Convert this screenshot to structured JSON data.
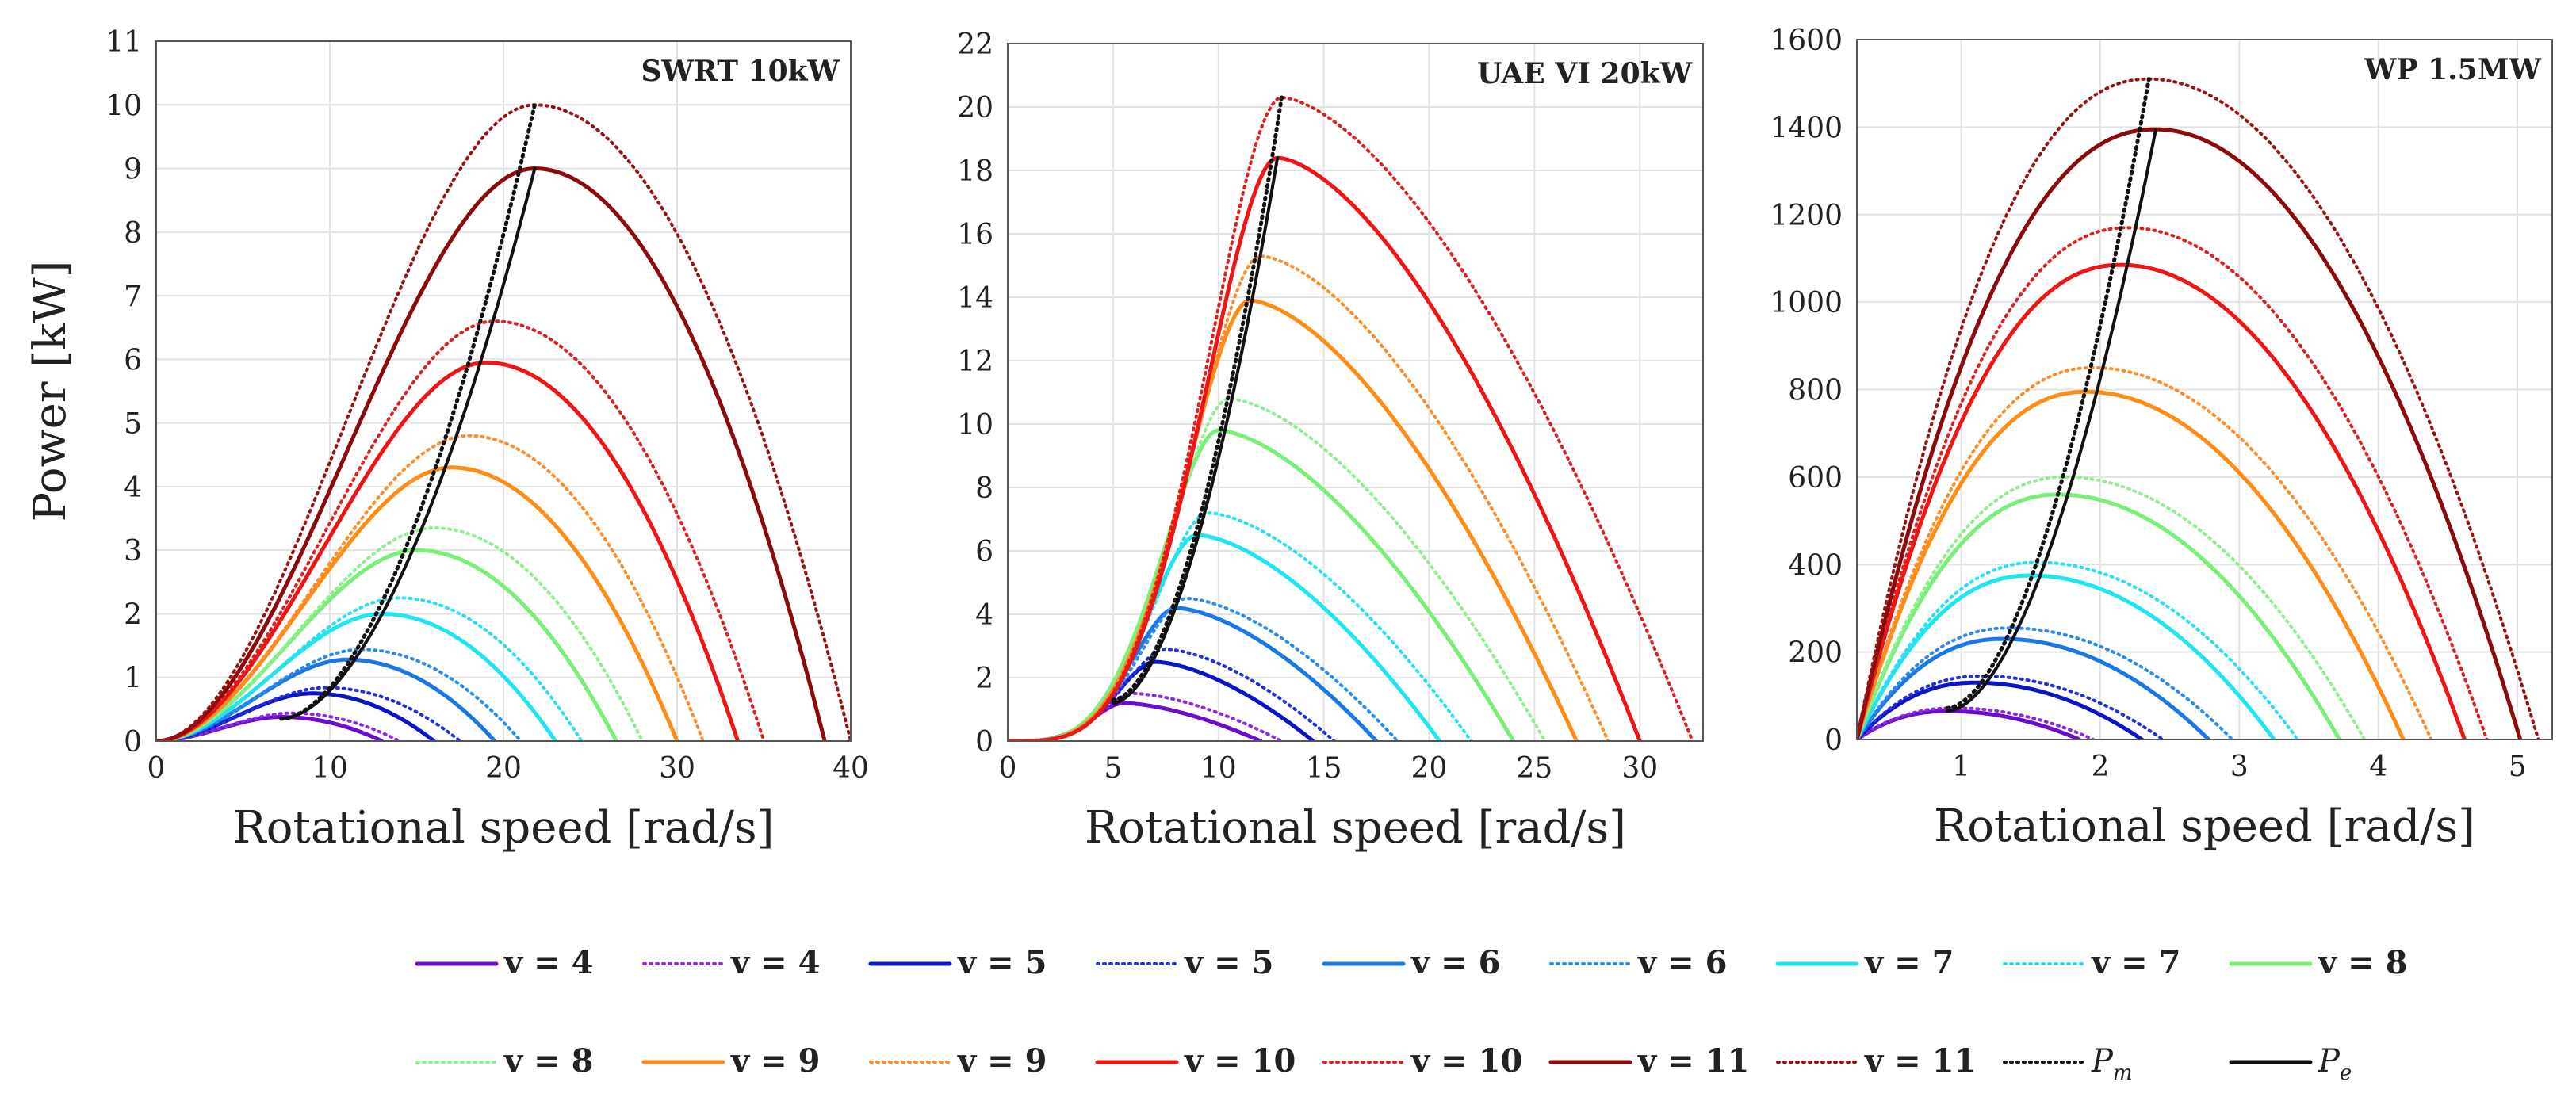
{
  "chart_data": [
    {
      "type": "line",
      "title": "SWRT 10kW",
      "xlabel": "Rotational speed [rad/s]",
      "ylabel": "Power [kW]",
      "xlim": [
        0,
        40
      ],
      "ylim": [
        0,
        11
      ],
      "xticks": [
        0,
        10,
        20,
        30,
        40
      ],
      "yticks": [
        0,
        1,
        2,
        3,
        4,
        5,
        6,
        7,
        8,
        9,
        10,
        11
      ],
      "tick_labels_x": [
        "0",
        "10",
        "20",
        "30",
        "40"
      ],
      "tick_labels_y": [
        "0",
        "1",
        "2",
        "3",
        "4",
        "5",
        "6",
        "7",
        "8",
        "9",
        "10",
        "11"
      ],
      "grid": true,
      "model": "cubic-parabola",
      "series_peaks": [
        {
          "name": "v = 4",
          "v": 4,
          "style": "solid",
          "color": "#6a0dcc",
          "peak_x": 7.2,
          "peak_y": 0.38,
          "end_x": 13
        },
        {
          "name": "v = 4",
          "v": 4,
          "style": "dotted",
          "color": "#8a2be2",
          "peak_x": 7.8,
          "peak_y": 0.44,
          "end_x": 14
        },
        {
          "name": "v = 5",
          "v": 5,
          "style": "solid",
          "color": "#0a14c8",
          "peak_x": 9.0,
          "peak_y": 0.75,
          "end_x": 16
        },
        {
          "name": "v = 5",
          "v": 5,
          "style": "dotted",
          "color": "#2030e0",
          "peak_x": 9.8,
          "peak_y": 0.84,
          "end_x": 17.5
        },
        {
          "name": "v = 6",
          "v": 6,
          "style": "solid",
          "color": "#1a78e6",
          "peak_x": 11.0,
          "peak_y": 1.28,
          "end_x": 19.5
        },
        {
          "name": "v = 6",
          "v": 6,
          "style": "dotted",
          "color": "#2a8cf0",
          "peak_x": 11.8,
          "peak_y": 1.44,
          "end_x": 21
        },
        {
          "name": "v = 7",
          "v": 7,
          "style": "solid",
          "color": "#1ee6f0",
          "peak_x": 13.0,
          "peak_y": 2.0,
          "end_x": 23
        },
        {
          "name": "v = 7",
          "v": 7,
          "style": "dotted",
          "color": "#28e0f0",
          "peak_x": 14.0,
          "peak_y": 2.25,
          "end_x": 24.5
        },
        {
          "name": "v = 8",
          "v": 8,
          "style": "solid",
          "color": "#78f078",
          "peak_x": 15.0,
          "peak_y": 3.0,
          "end_x": 26.5
        },
        {
          "name": "v = 8",
          "v": 8,
          "style": "dotted",
          "color": "#8cf08c",
          "peak_x": 16.0,
          "peak_y": 3.35,
          "end_x": 28
        },
        {
          "name": "v = 9",
          "v": 9,
          "style": "solid",
          "color": "#ff8c14",
          "peak_x": 17.0,
          "peak_y": 4.3,
          "end_x": 30
        },
        {
          "name": "v = 9",
          "v": 9,
          "style": "dotted",
          "color": "#ff8c28",
          "peak_x": 18.0,
          "peak_y": 4.8,
          "end_x": 31.5
        },
        {
          "name": "v = 10",
          "v": 10,
          "style": "solid",
          "color": "#f01414",
          "peak_x": 19.0,
          "peak_y": 5.95,
          "end_x": 33.5
        },
        {
          "name": "v = 10",
          "v": 10,
          "style": "dotted",
          "color": "#e01e1e",
          "peak_x": 19.5,
          "peak_y": 6.6,
          "end_x": 35
        },
        {
          "name": "v = 11",
          "v": 11,
          "style": "solid",
          "color": "#8b0a0a",
          "peak_x": 21.8,
          "peak_y": 9.0,
          "end_x": 38.5
        },
        {
          "name": "v = 11",
          "v": 11,
          "style": "dotted",
          "color": "#9b1010",
          "peak_x": 21.8,
          "peak_y": 10.0,
          "end_x": 40
        }
      ],
      "Pm": {
        "start_x": 7.2,
        "end_x": 21.8,
        "end_y": 10.0
      },
      "Pe": {
        "start_x": 7.2,
        "end_x": 21.8,
        "end_y": 9.0
      }
    },
    {
      "type": "line",
      "title": "UAE VI 20kW",
      "xlabel": "Rotational speed [rad/s]",
      "ylabel": "",
      "xlim": [
        0,
        33
      ],
      "ylim": [
        0,
        22
      ],
      "xticks": [
        0,
        5,
        10,
        15,
        20,
        25,
        30
      ],
      "yticks": [
        0,
        2,
        4,
        6,
        8,
        10,
        12,
        14,
        16,
        18,
        20,
        22
      ],
      "tick_labels_x": [
        "0",
        "5",
        "10",
        "15",
        "20",
        "25",
        "30"
      ],
      "tick_labels_y": [
        "0",
        "2",
        "4",
        "6",
        "8",
        "10",
        "12",
        "14",
        "16",
        "18",
        "20",
        "22"
      ],
      "grid": true,
      "model": "sigmoid-peak",
      "series_peaks": [
        {
          "name": "v = 4",
          "v": 4,
          "style": "solid",
          "color": "#6a0dcc",
          "peak_x": 5.5,
          "peak_y": 1.2,
          "end_x": 12
        },
        {
          "name": "v = 4",
          "v": 4,
          "style": "dotted",
          "color": "#8a2be2",
          "peak_x": 6.0,
          "peak_y": 1.5,
          "end_x": 13
        },
        {
          "name": "v = 5",
          "v": 5,
          "style": "solid",
          "color": "#0a14c8",
          "peak_x": 7.0,
          "peak_y": 2.5,
          "end_x": 14.5
        },
        {
          "name": "v = 5",
          "v": 5,
          "style": "dotted",
          "color": "#2030e0",
          "peak_x": 7.5,
          "peak_y": 2.9,
          "end_x": 15.5
        },
        {
          "name": "v = 6",
          "v": 6,
          "style": "solid",
          "color": "#1a78e6",
          "peak_x": 8.0,
          "peak_y": 4.2,
          "end_x": 17.5
        },
        {
          "name": "v = 6",
          "v": 6,
          "style": "dotted",
          "color": "#2a8cf0",
          "peak_x": 8.5,
          "peak_y": 4.5,
          "end_x": 18.5
        },
        {
          "name": "v = 7",
          "v": 7,
          "style": "solid",
          "color": "#1ee6f0",
          "peak_x": 9.0,
          "peak_y": 6.5,
          "end_x": 20.5
        },
        {
          "name": "v = 7",
          "v": 7,
          "style": "dotted",
          "color": "#28e0f0",
          "peak_x": 9.5,
          "peak_y": 7.2,
          "end_x": 22
        },
        {
          "name": "v = 8",
          "v": 8,
          "style": "solid",
          "color": "#78f078",
          "peak_x": 10.0,
          "peak_y": 9.8,
          "end_x": 24
        },
        {
          "name": "v = 8",
          "v": 8,
          "style": "dotted",
          "color": "#8cf08c",
          "peak_x": 10.5,
          "peak_y": 10.8,
          "end_x": 25.5
        },
        {
          "name": "v = 9",
          "v": 9,
          "style": "solid",
          "color": "#ff8c14",
          "peak_x": 11.5,
          "peak_y": 13.9,
          "end_x": 27
        },
        {
          "name": "v = 9",
          "v": 9,
          "style": "dotted",
          "color": "#ff8c28",
          "peak_x": 12.0,
          "peak_y": 15.3,
          "end_x": 28.5
        },
        {
          "name": "v = 10",
          "v": 10,
          "style": "solid",
          "color": "#f01414",
          "peak_x": 12.8,
          "peak_y": 18.4,
          "end_x": 30
        },
        {
          "name": "v = 10",
          "v": 10,
          "style": "dotted",
          "color": "#e01e1e",
          "peak_x": 13.0,
          "peak_y": 20.3,
          "end_x": 32.5
        }
      ],
      "Pm": {
        "start_x": 5.0,
        "end_x": 13.0,
        "end_y": 20.3,
        "start_y": 1.3
      },
      "Pe": {
        "start_x": 5.0,
        "end_x": 12.8,
        "end_y": 18.4,
        "start_y": 1.2
      }
    },
    {
      "type": "line",
      "title": "WP 1.5MW",
      "xlabel": "Rotational speed [rad/s]",
      "ylabel": "",
      "xlim": [
        0.25,
        5.25
      ],
      "ylim": [
        0,
        1600
      ],
      "xticks": [
        1,
        2,
        3,
        4,
        5
      ],
      "yticks": [
        0,
        200,
        400,
        600,
        800,
        1000,
        1200,
        1400,
        1600
      ],
      "tick_labels_x": [
        "1",
        "2",
        "3",
        "4",
        "5"
      ],
      "tick_labels_y": [
        "0",
        "200",
        "400",
        "600",
        "800",
        "1000",
        "1200",
        "1400",
        "1600"
      ],
      "grid": true,
      "model": "quadratic-parabola",
      "series_peaks": [
        {
          "name": "v = 4",
          "v": 4,
          "style": "solid",
          "color": "#6a0dcc",
          "peak_x": 0.9,
          "peak_y": 65,
          "end_x": 1.85
        },
        {
          "name": "v = 4",
          "v": 4,
          "style": "dotted",
          "color": "#8a2be2",
          "peak_x": 0.95,
          "peak_y": 72,
          "end_x": 1.95
        },
        {
          "name": "v = 5",
          "v": 5,
          "style": "solid",
          "color": "#0a14c8",
          "peak_x": 1.1,
          "peak_y": 130,
          "end_x": 2.3
        },
        {
          "name": "v = 5",
          "v": 5,
          "style": "dotted",
          "color": "#2030e0",
          "peak_x": 1.15,
          "peak_y": 145,
          "end_x": 2.45
        },
        {
          "name": "v = 6",
          "v": 6,
          "style": "solid",
          "color": "#1a78e6",
          "peak_x": 1.3,
          "peak_y": 230,
          "end_x": 2.78
        },
        {
          "name": "v = 6",
          "v": 6,
          "style": "dotted",
          "color": "#2a8cf0",
          "peak_x": 1.35,
          "peak_y": 255,
          "end_x": 2.95
        },
        {
          "name": "v = 7",
          "v": 7,
          "style": "solid",
          "color": "#1ee6f0",
          "peak_x": 1.5,
          "peak_y": 375,
          "end_x": 3.25
        },
        {
          "name": "v = 7",
          "v": 7,
          "style": "dotted",
          "color": "#28e0f0",
          "peak_x": 1.55,
          "peak_y": 405,
          "end_x": 3.42
        },
        {
          "name": "v = 8",
          "v": 8,
          "style": "solid",
          "color": "#78f078",
          "peak_x": 1.7,
          "peak_y": 560,
          "end_x": 3.72
        },
        {
          "name": "v = 8",
          "v": 8,
          "style": "dotted",
          "color": "#8cf08c",
          "peak_x": 1.75,
          "peak_y": 600,
          "end_x": 3.9
        },
        {
          "name": "v = 9",
          "v": 9,
          "style": "solid",
          "color": "#ff8c14",
          "peak_x": 1.9,
          "peak_y": 795,
          "end_x": 4.18
        },
        {
          "name": "v = 9",
          "v": 9,
          "style": "dotted",
          "color": "#ff8c28",
          "peak_x": 1.95,
          "peak_y": 850,
          "end_x": 4.38
        },
        {
          "name": "v = 10",
          "v": 10,
          "style": "solid",
          "color": "#f01414",
          "peak_x": 2.15,
          "peak_y": 1085,
          "end_x": 4.62
        },
        {
          "name": "v = 10",
          "v": 10,
          "style": "dotted",
          "color": "#e01e1e",
          "peak_x": 2.2,
          "peak_y": 1170,
          "end_x": 4.78
        },
        {
          "name": "v = 11",
          "v": 11,
          "style": "solid",
          "color": "#8b0a0a",
          "peak_x": 2.4,
          "peak_y": 1395,
          "end_x": 5.02
        },
        {
          "name": "v = 11",
          "v": 11,
          "style": "dotted",
          "color": "#9b1010",
          "peak_x": 2.35,
          "peak_y": 1510,
          "end_x": 5.15
        }
      ],
      "Pm": {
        "start_x": 0.9,
        "end_x": 2.35,
        "end_y": 1510,
        "start_y": 72
      },
      "Pe": {
        "start_x": 0.9,
        "end_x": 2.4,
        "end_y": 1395,
        "start_y": 65
      }
    }
  ],
  "legend": {
    "items": [
      {
        "label": "v = 4",
        "color": "#6a0dcc",
        "style": "solid"
      },
      {
        "label": "v = 4",
        "color": "#8a2be2",
        "style": "dotted"
      },
      {
        "label": "v = 5",
        "color": "#0a14c8",
        "style": "solid"
      },
      {
        "label": "v = 5",
        "color": "#2030e0",
        "style": "dotted"
      },
      {
        "label": "v = 6",
        "color": "#1a78e6",
        "style": "solid"
      },
      {
        "label": "v = 6",
        "color": "#2a8cf0",
        "style": "dotted"
      },
      {
        "label": "v = 7",
        "color": "#1ee6f0",
        "style": "solid"
      },
      {
        "label": "v = 7",
        "color": "#28e0f0",
        "style": "dotted"
      },
      {
        "label": "v = 8",
        "color": "#78f078",
        "style": "solid"
      },
      {
        "label": "v = 8",
        "color": "#8cf08c",
        "style": "dotted"
      },
      {
        "label": "v = 9",
        "color": "#ff8c14",
        "style": "solid"
      },
      {
        "label": "v = 9",
        "color": "#ff8c28",
        "style": "dotted"
      },
      {
        "label": "v = 10",
        "color": "#f01414",
        "style": "solid"
      },
      {
        "label": "v = 10",
        "color": "#e01e1e",
        "style": "dotted"
      },
      {
        "label": "v = 11",
        "color": "#8b0a0a",
        "style": "solid"
      },
      {
        "label": "v = 11",
        "color": "#9b1010",
        "style": "dotted"
      },
      {
        "label": "P",
        "sub": "m",
        "color": "#111111",
        "style": "dotted"
      },
      {
        "label": "P",
        "sub": "e",
        "color": "#111111",
        "style": "solid"
      }
    ]
  }
}
